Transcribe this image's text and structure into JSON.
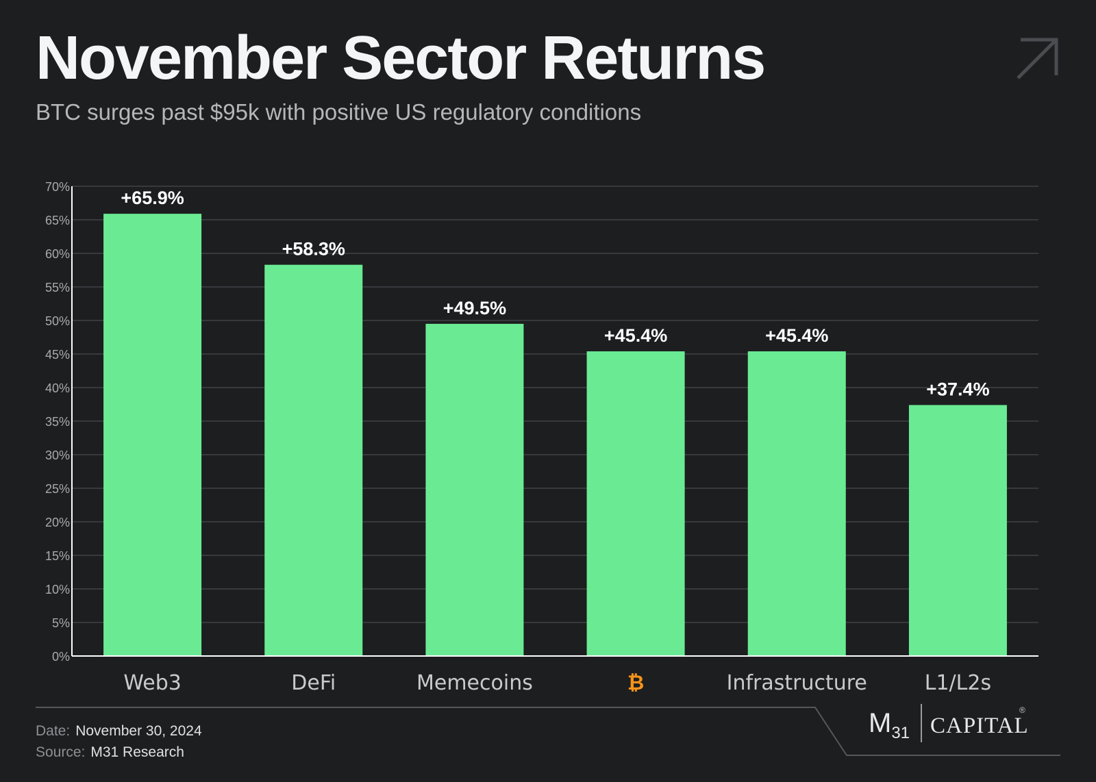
{
  "header": {
    "title": "November Sector Returns",
    "subtitle": "BTC surges past $95k with positive US regulatory conditions"
  },
  "icons": {
    "corner": "arrow-up-right-icon",
    "btc": "bitcoin-icon"
  },
  "chart_data": {
    "type": "bar",
    "categories": [
      "Web3",
      "DeFi",
      "Memecoins",
      "₿",
      "Infrastructure",
      "L1/L2s"
    ],
    "values": [
      65.9,
      58.3,
      49.5,
      45.4,
      45.4,
      37.4
    ],
    "data_labels": [
      "+65.9%",
      "+58.3%",
      "+49.5%",
      "+45.4%",
      "+45.4%",
      "+37.4%"
    ],
    "yticks": [
      0,
      5,
      10,
      15,
      20,
      25,
      30,
      35,
      40,
      45,
      50,
      55,
      60,
      65,
      70
    ],
    "ytick_labels": [
      "0%",
      "5%",
      "10%",
      "15%",
      "20%",
      "25%",
      "30%",
      "35%",
      "40%",
      "45%",
      "50%",
      "55%",
      "60%",
      "65%",
      "70%"
    ],
    "ylim": [
      0,
      70
    ],
    "grid": true,
    "colors": {
      "bar": "#6aeb93",
      "btc_label": "#f7931a",
      "grid": "#404246",
      "axis": "#ffffff"
    }
  },
  "footer": {
    "date_label": "Date:",
    "date_value": "November 30, 2024",
    "source_label": "Source:",
    "source_value": "M31 Research"
  },
  "logo": {
    "mark": "M",
    "mark_sub": "31",
    "name": "CAPITAL",
    "reg": "®"
  }
}
